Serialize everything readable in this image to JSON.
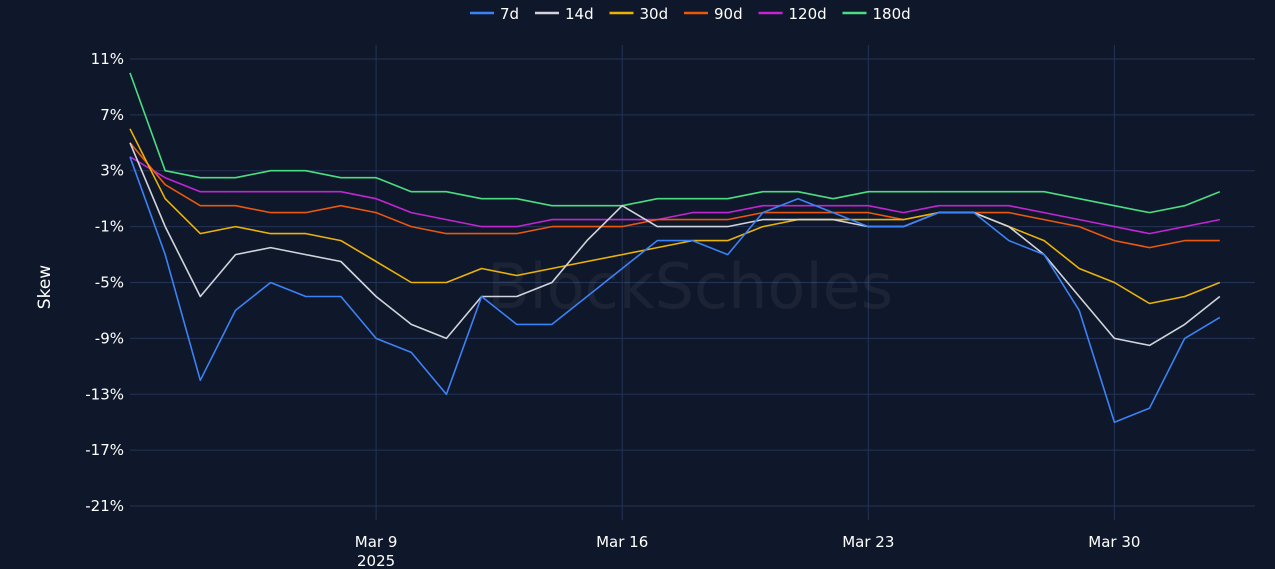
{
  "colors": {
    "background": "#0f172a",
    "grid": "#243455"
  },
  "watermark": "BlockScholes",
  "chart_data": {
    "type": "line",
    "title": "",
    "ylabel": "Skew",
    "xlabel": "",
    "x_year_label": "2025",
    "x_range": [
      "2025-03-02",
      "2025-04-03"
    ],
    "ylim": [
      -22,
      12
    ],
    "y_ticks": [
      {
        "value": 11,
        "label": "11%"
      },
      {
        "value": 7,
        "label": "7%"
      },
      {
        "value": 3,
        "label": "3%"
      },
      {
        "value": -1,
        "label": "-1%"
      },
      {
        "value": -5,
        "label": "-5%"
      },
      {
        "value": -9,
        "label": "-9%"
      },
      {
        "value": -13,
        "label": "-13%"
      },
      {
        "value": -17,
        "label": "-17%"
      },
      {
        "value": -21,
        "label": "-21%"
      }
    ],
    "x_ticks": [
      {
        "date": "2025-03-09",
        "label": "Mar 9"
      },
      {
        "date": "2025-03-16",
        "label": "Mar 16"
      },
      {
        "date": "2025-03-23",
        "label": "Mar 23"
      },
      {
        "date": "2025-03-30",
        "label": "Mar 30"
      }
    ],
    "grid": true,
    "legend_position": "top-center",
    "series": [
      {
        "name": "7d",
        "color": "#3b82f6",
        "x": [
          "2025-03-02",
          "2025-03-03",
          "2025-03-04",
          "2025-03-05",
          "2025-03-06",
          "2025-03-07",
          "2025-03-08",
          "2025-03-09",
          "2025-03-10",
          "2025-03-11",
          "2025-03-12",
          "2025-03-13",
          "2025-03-14",
          "2025-03-15",
          "2025-03-16",
          "2025-03-17",
          "2025-03-18",
          "2025-03-19",
          "2025-03-20",
          "2025-03-21",
          "2025-03-22",
          "2025-03-23",
          "2025-03-24",
          "2025-03-25",
          "2025-03-26",
          "2025-03-27",
          "2025-03-28",
          "2025-03-29",
          "2025-03-30",
          "2025-03-31",
          "2025-04-01",
          "2025-04-02"
        ],
        "values": [
          4,
          -3,
          -12,
          -7,
          -5,
          -6,
          -6,
          -9,
          -10,
          -13,
          -6,
          -8,
          -8,
          -6,
          -4,
          -2,
          -2,
          -3,
          0,
          1,
          0,
          -1,
          -1,
          0,
          0,
          -2,
          -3,
          -7,
          -15,
          -14,
          -9,
          -7.5
        ]
      },
      {
        "name": "14d",
        "color": "#d1d5db",
        "x": [
          "2025-03-02",
          "2025-03-03",
          "2025-03-04",
          "2025-03-05",
          "2025-03-06",
          "2025-03-07",
          "2025-03-08",
          "2025-03-09",
          "2025-03-10",
          "2025-03-11",
          "2025-03-12",
          "2025-03-13",
          "2025-03-14",
          "2025-03-15",
          "2025-03-16",
          "2025-03-17",
          "2025-03-18",
          "2025-03-19",
          "2025-03-20",
          "2025-03-21",
          "2025-03-22",
          "2025-03-23",
          "2025-03-24",
          "2025-03-25",
          "2025-03-26",
          "2025-03-27",
          "2025-03-28",
          "2025-03-29",
          "2025-03-30",
          "2025-03-31",
          "2025-04-01",
          "2025-04-02"
        ],
        "values": [
          5,
          -1,
          -6,
          -3,
          -2.5,
          -3,
          -3.5,
          -6,
          -8,
          -9,
          -6,
          -6,
          -5,
          -2,
          0.5,
          -1,
          -1,
          -1,
          -0.5,
          -0.5,
          -0.5,
          -1,
          -1,
          0,
          0,
          -1,
          -3,
          -6,
          -9,
          -9.5,
          -8,
          -6
        ]
      },
      {
        "name": "30d",
        "color": "#eab308",
        "x": [
          "2025-03-02",
          "2025-03-03",
          "2025-03-04",
          "2025-03-05",
          "2025-03-06",
          "2025-03-07",
          "2025-03-08",
          "2025-03-09",
          "2025-03-10",
          "2025-03-11",
          "2025-03-12",
          "2025-03-13",
          "2025-03-14",
          "2025-03-15",
          "2025-03-16",
          "2025-03-17",
          "2025-03-18",
          "2025-03-19",
          "2025-03-20",
          "2025-03-21",
          "2025-03-22",
          "2025-03-23",
          "2025-03-24",
          "2025-03-25",
          "2025-03-26",
          "2025-03-27",
          "2025-03-28",
          "2025-03-29",
          "2025-03-30",
          "2025-03-31",
          "2025-04-01",
          "2025-04-02"
        ],
        "values": [
          6,
          1,
          -1.5,
          -1,
          -1.5,
          -1.5,
          -2,
          -3.5,
          -5,
          -5,
          -4,
          -4.5,
          -4,
          -3.5,
          -3,
          -2.5,
          -2,
          -2,
          -1,
          -0.5,
          -0.5,
          -0.5,
          -0.5,
          0,
          0,
          -1,
          -2,
          -4,
          -5,
          -6.5,
          -6,
          -5
        ]
      },
      {
        "name": "90d",
        "color": "#ea580c",
        "x": [
          "2025-03-02",
          "2025-03-03",
          "2025-03-04",
          "2025-03-05",
          "2025-03-06",
          "2025-03-07",
          "2025-03-08",
          "2025-03-09",
          "2025-03-10",
          "2025-03-11",
          "2025-03-12",
          "2025-03-13",
          "2025-03-14",
          "2025-03-15",
          "2025-03-16",
          "2025-03-17",
          "2025-03-18",
          "2025-03-19",
          "2025-03-20",
          "2025-03-21",
          "2025-03-22",
          "2025-03-23",
          "2025-03-24",
          "2025-03-25",
          "2025-03-26",
          "2025-03-27",
          "2025-03-28",
          "2025-03-29",
          "2025-03-30",
          "2025-03-31",
          "2025-04-01",
          "2025-04-02"
        ],
        "values": [
          5,
          2,
          0.5,
          0.5,
          0,
          0,
          0.5,
          0,
          -1,
          -1.5,
          -1.5,
          -1.5,
          -1,
          -1,
          -1,
          -0.5,
          -0.5,
          -0.5,
          0,
          0,
          0,
          0,
          -0.5,
          0,
          0,
          0,
          -0.5,
          -1,
          -2,
          -2.5,
          -2,
          -2
        ]
      },
      {
        "name": "120d",
        "color": "#c026d3",
        "x": [
          "2025-03-02",
          "2025-03-03",
          "2025-03-04",
          "2025-03-05",
          "2025-03-06",
          "2025-03-07",
          "2025-03-08",
          "2025-03-09",
          "2025-03-10",
          "2025-03-11",
          "2025-03-12",
          "2025-03-13",
          "2025-03-14",
          "2025-03-15",
          "2025-03-16",
          "2025-03-17",
          "2025-03-18",
          "2025-03-19",
          "2025-03-20",
          "2025-03-21",
          "2025-03-22",
          "2025-03-23",
          "2025-03-24",
          "2025-03-25",
          "2025-03-26",
          "2025-03-27",
          "2025-03-28",
          "2025-03-29",
          "2025-03-30",
          "2025-03-31",
          "2025-04-01",
          "2025-04-02"
        ],
        "values": [
          4,
          2.5,
          1.5,
          1.5,
          1.5,
          1.5,
          1.5,
          1,
          0,
          -0.5,
          -1,
          -1,
          -0.5,
          -0.5,
          -0.5,
          -0.5,
          0,
          0,
          0.5,
          0.5,
          0.5,
          0.5,
          0,
          0.5,
          0.5,
          0.5,
          0,
          -0.5,
          -1,
          -1.5,
          -1,
          -0.5
        ]
      },
      {
        "name": "180d",
        "color": "#4ade80",
        "x": [
          "2025-03-02",
          "2025-03-03",
          "2025-03-04",
          "2025-03-05",
          "2025-03-06",
          "2025-03-07",
          "2025-03-08",
          "2025-03-09",
          "2025-03-10",
          "2025-03-11",
          "2025-03-12",
          "2025-03-13",
          "2025-03-14",
          "2025-03-15",
          "2025-03-16",
          "2025-03-17",
          "2025-03-18",
          "2025-03-19",
          "2025-03-20",
          "2025-03-21",
          "2025-03-22",
          "2025-03-23",
          "2025-03-24",
          "2025-03-25",
          "2025-03-26",
          "2025-03-27",
          "2025-03-28",
          "2025-03-29",
          "2025-03-30",
          "2025-03-31",
          "2025-04-01",
          "2025-04-02"
        ],
        "values": [
          10,
          3,
          2.5,
          2.5,
          3,
          3,
          2.5,
          2.5,
          1.5,
          1.5,
          1,
          1,
          0.5,
          0.5,
          0.5,
          1,
          1,
          1,
          1.5,
          1.5,
          1,
          1.5,
          1.5,
          1.5,
          1.5,
          1.5,
          1.5,
          1,
          0.5,
          0,
          0.5,
          1.5
        ]
      }
    ]
  }
}
